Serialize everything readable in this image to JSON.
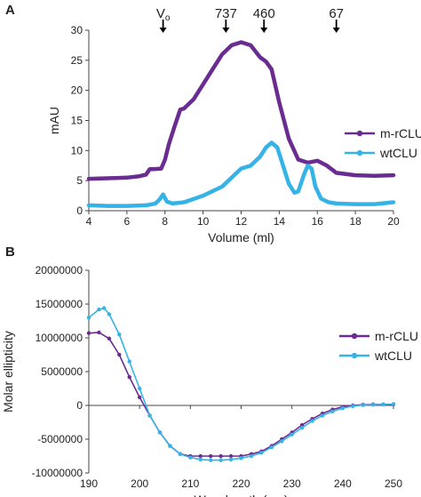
{
  "colors": {
    "m_rclu": "#6a2c91",
    "wtclu": "#35b3e6",
    "axis": "#444444",
    "text": "#222222"
  },
  "chart_data": [
    {
      "type": "line",
      "panel": "A",
      "xlabel": "Volume (ml)",
      "ylabel": "mAU",
      "xlim": [
        4,
        20
      ],
      "ylim": [
        0,
        30
      ],
      "xticks": [
        4,
        6,
        8,
        10,
        12,
        14,
        16,
        18,
        20
      ],
      "yticks": [
        0,
        5,
        10,
        15,
        20,
        25,
        30
      ],
      "grid": false,
      "legend": "right",
      "markers": [
        {
          "label": "V",
          "sub": "o",
          "x": 7.9
        },
        {
          "label": "737",
          "x": 11.2
        },
        {
          "label": "460",
          "x": 13.2
        },
        {
          "label": "67",
          "x": 17.0
        }
      ],
      "series": [
        {
          "name": "m-rCLU",
          "color": "#6a2c91",
          "x": [
            4,
            5,
            6,
            6.6,
            7.0,
            7.2,
            7.4,
            7.8,
            8.0,
            8.2,
            8.5,
            8.8,
            9.0,
            9.5,
            10,
            10.5,
            11,
            11.5,
            12,
            12.5,
            13,
            13.3,
            13.6,
            14,
            14.5,
            15,
            15.5,
            16,
            16.5,
            17,
            18,
            19,
            20
          ],
          "y": [
            5.3,
            5.4,
            5.5,
            5.7,
            6.0,
            6.9,
            6.9,
            7.0,
            8.5,
            11.0,
            14.0,
            16.8,
            17.0,
            18.5,
            21.0,
            23.5,
            26.0,
            27.5,
            28.0,
            27.5,
            25.5,
            24.8,
            23.5,
            18.0,
            12.0,
            8.5,
            8.0,
            8.3,
            7.5,
            6.3,
            5.9,
            5.8,
            5.9
          ]
        },
        {
          "name": "wtCLU",
          "color": "#35b3e6",
          "x": [
            4,
            5,
            6,
            7,
            7.5,
            7.7,
            7.9,
            8.1,
            8.4,
            9,
            10,
            11,
            11.5,
            12,
            12.5,
            13,
            13.3,
            13.6,
            13.9,
            14.2,
            14.5,
            14.8,
            15.0,
            15.3,
            15.5,
            15.7,
            15.9,
            16.2,
            16.6,
            17,
            18,
            19,
            20
          ],
          "y": [
            0.9,
            0.8,
            0.8,
            0.9,
            1.2,
            1.8,
            2.7,
            1.5,
            1.2,
            1.4,
            2.5,
            4.0,
            5.5,
            7.0,
            7.5,
            9.0,
            10.5,
            11.3,
            10.5,
            7.5,
            4.5,
            3.0,
            3.2,
            6.0,
            7.5,
            7.0,
            4.0,
            2.0,
            1.4,
            1.2,
            1.1,
            1.1,
            1.4
          ]
        }
      ]
    },
    {
      "type": "line",
      "panel": "B",
      "xlabel": "Wavelength (nm)",
      "ylabel": "Molar ellipticity",
      "xlim": [
        190,
        250
      ],
      "ylim": [
        -10000000,
        20000000
      ],
      "xticks": [
        190,
        200,
        210,
        220,
        230,
        240,
        250
      ],
      "yticks": [
        -10000000,
        -5000000,
        0,
        5000000,
        10000000,
        15000000,
        20000000
      ],
      "ytick_labels": [
        "-10000000",
        "-5000000",
        "0",
        "5000000",
        "10000000",
        "15000000",
        "20000000"
      ],
      "grid": false,
      "legend": "right",
      "series": [
        {
          "name": "m-rCLU",
          "color": "#6a2c91",
          "x": [
            190,
            192,
            194,
            196,
            198,
            200,
            202,
            204,
            206,
            208,
            210,
            212,
            214,
            216,
            218,
            220,
            222,
            224,
            226,
            228,
            230,
            232,
            234,
            236,
            238,
            240,
            242,
            244,
            246,
            248,
            250
          ],
          "y": [
            10700000,
            10800000,
            9900000,
            7500000,
            4200000,
            1200000,
            -1500000,
            -4000000,
            -6000000,
            -7200000,
            -7500000,
            -7500000,
            -7500000,
            -7500000,
            -7500000,
            -7500000,
            -7200000,
            -6800000,
            -6000000,
            -5000000,
            -4000000,
            -2900000,
            -2000000,
            -1200000,
            -600000,
            -200000,
            0,
            100000,
            150000,
            150000,
            150000
          ]
        },
        {
          "name": "wtCLU",
          "color": "#35b3e6",
          "x": [
            190,
            192,
            193,
            194,
            196,
            198,
            200,
            202,
            204,
            206,
            208,
            210,
            212,
            214,
            216,
            218,
            220,
            222,
            224,
            226,
            228,
            230,
            232,
            234,
            236,
            238,
            240,
            242,
            244,
            246,
            248,
            250
          ],
          "y": [
            13000000,
            14200000,
            14400000,
            13500000,
            10500000,
            6500000,
            2500000,
            -1500000,
            -4000000,
            -6000000,
            -7200000,
            -7700000,
            -8000000,
            -8100000,
            -8100000,
            -8000000,
            -7800000,
            -7500000,
            -7000000,
            -6200000,
            -5300000,
            -4300000,
            -3300000,
            -2300000,
            -1500000,
            -900000,
            -400000,
            -100000,
            50000,
            100000,
            150000,
            200000
          ]
        }
      ]
    }
  ],
  "panels": [
    "A",
    "B"
  ]
}
